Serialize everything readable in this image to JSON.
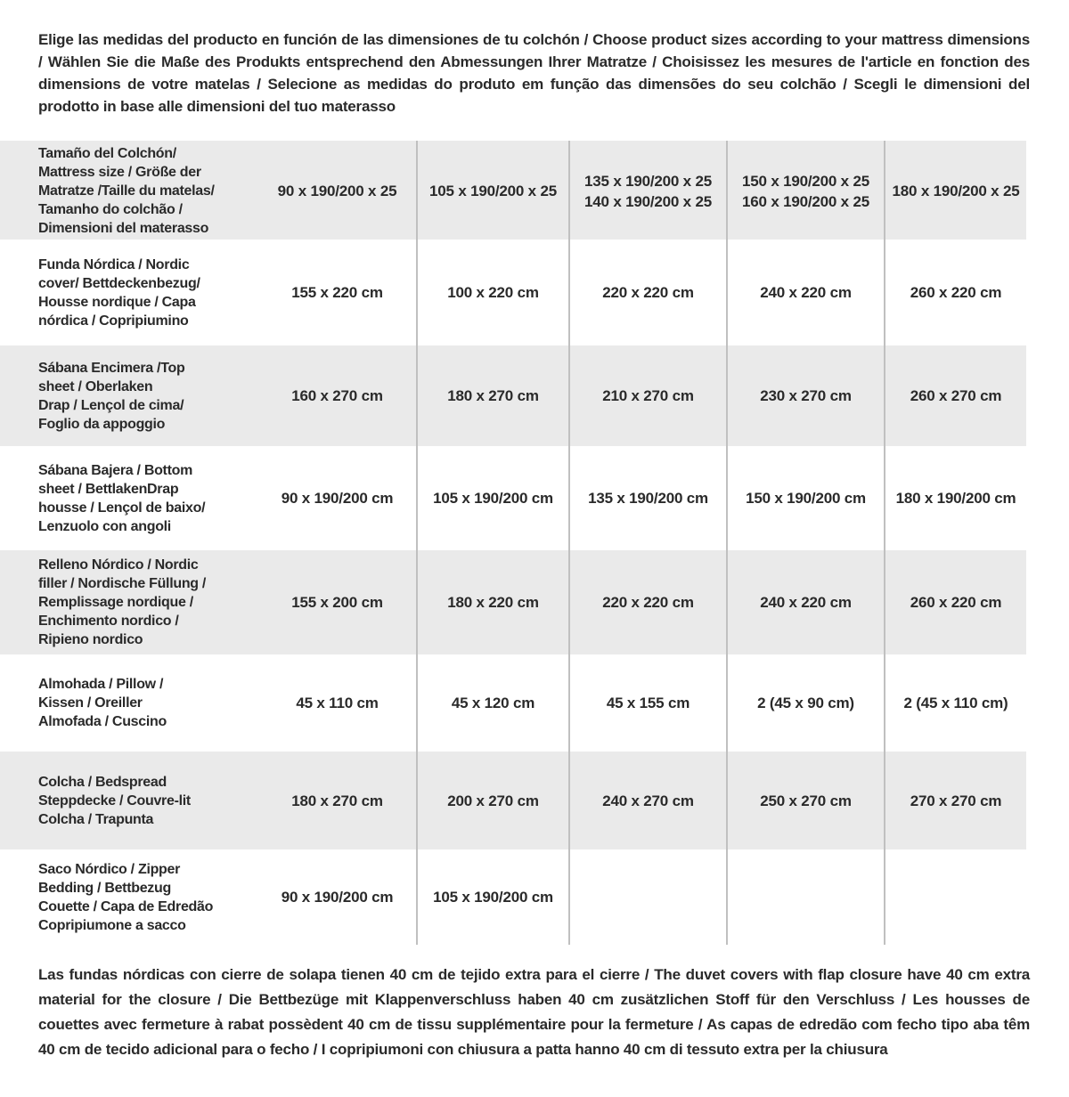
{
  "intro": {
    "text": "Elige las medidas del producto en función de las dimensiones de tu colchón / Choose product sizes according to your mattress dimensions / Wählen Sie die Maße des Produkts entsprechend den Abmessungen Ihrer Matratze / Choisissez les mesures de l'article en fonction des dimensions de votre matelas / Selecione as medidas do produto em função das dimensões do seu colchão / Scegli le dimensioni del prodotto in base alle dimensioni del tuo materasso"
  },
  "table": {
    "header": {
      "label": "Tamaño del Colchón/\nMattress size / Größe der\nMatratze /Taille du matelas/\nTamanho do colchão /\nDimensioni del materasso",
      "values": [
        "90 x 190/200 x 25",
        "105 x 190/200 x 25",
        "135 x 190/200 x 25\n140 x 190/200 x 25",
        "150 x 190/200 x 25\n160 x 190/200 x 25",
        "180 x 190/200 x 25"
      ]
    },
    "rows": [
      {
        "label": "Funda Nórdica /  Nordic\ncover/ Bettdeckenbezug/\nHousse nordique  / Capa\nnórdica / Copripiumino",
        "values": [
          "155 x 220 cm",
          "100 x 220 cm",
          "220 x 220 cm",
          "240 x 220 cm",
          "260 x 220 cm"
        ]
      },
      {
        "label": "Sábana Encimera /Top\nsheet / Oberlaken\nDrap / Lençol de cima/\nFoglio da appoggio",
        "values": [
          "160 x 270 cm",
          "180 x 270 cm",
          "210 x 270 cm",
          "230 x 270 cm",
          "260 x 270 cm"
        ]
      },
      {
        "label": "Sábana Bajera / Bottom\nsheet / BettlakenDrap\nhousse / Lençol de baixo/\nLenzuolo con angoli",
        "values": [
          "90 x 190/200 cm",
          "105 x 190/200 cm",
          "135 x 190/200 cm",
          "150 x 190/200 cm",
          "180 x 190/200 cm"
        ]
      },
      {
        "label": "Relleno Nórdico / Nordic\nfiller / Nordische Füllung /\nRemplissage nordique /\nEnchimento nordico /\nRipieno nordico",
        "values": [
          "155 x 200 cm",
          "180 x 220 cm",
          "220 x 220 cm",
          "240 x 220 cm",
          "260 x 220 cm"
        ]
      },
      {
        "label": "Almohada  / Pillow /\nKissen / Oreiller\nAlmofada / Cuscino",
        "values": [
          "45 x 110 cm",
          "45 x 120 cm",
          "45 x 155 cm",
          "2 (45 x 90 cm)",
          "2 (45 x 110 cm)"
        ]
      },
      {
        "label": "Colcha / Bedspread\nSteppdecke / Couvre-lit\nColcha / Trapunta",
        "values": [
          "180 x 270 cm",
          "200 x 270 cm",
          "240 x 270 cm",
          "250 x 270 cm",
          "270 x 270 cm"
        ]
      },
      {
        "label": "Saco Nórdico / Zipper\nBedding / Bettbezug\nCouette  / Capa de Edredão\nCopripiumone a sacco",
        "values": [
          "90 x 190/200 cm",
          "105 x 190/200 cm",
          "",
          "",
          ""
        ]
      }
    ]
  },
  "footnote": {
    "text": "Las fundas nórdicas con cierre de solapa tienen 40 cm de tejido extra para el cierre  / The duvet covers with flap closure have 40 cm extra material for the closure / Die Bettbezüge mit Klappenverschluss haben 40 cm zusätzlichen Stoff für den Verschluss / Les housses de couettes avec fermeture à rabat possèdent 40 cm de tissu supplémentaire pour la fermeture / As capas de edredão com fecho tipo aba têm 40 cm de tecido adicional para o fecho / I copripiumoni con chiusura a patta hanno 40 cm di tessuto extra per la chiusura"
  },
  "colors": {
    "row_shade": "#eaeaea",
    "divider": "#c0c0c0",
    "text": "#2a2a2a"
  }
}
